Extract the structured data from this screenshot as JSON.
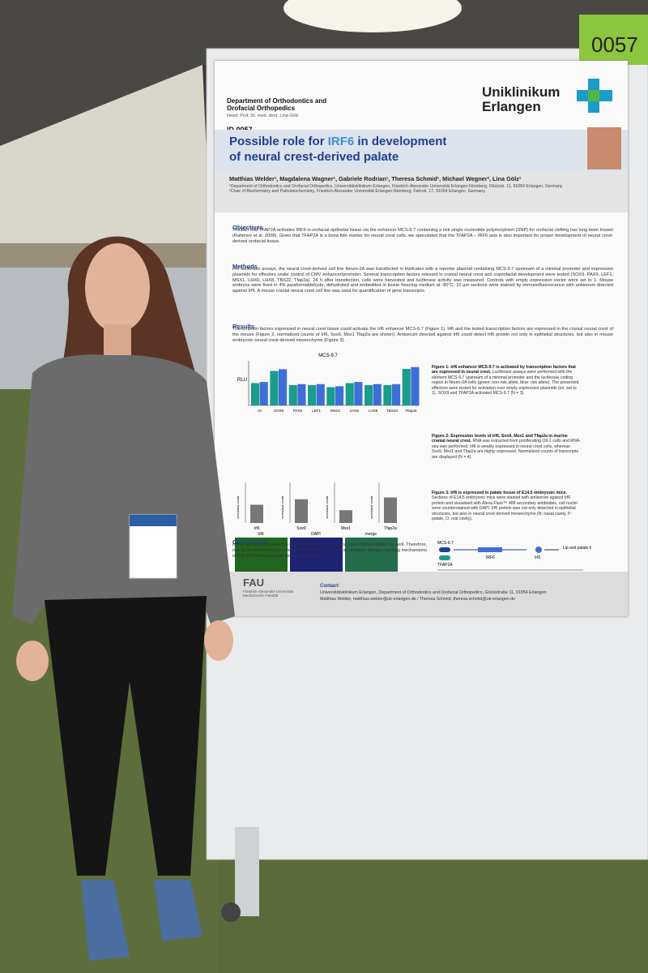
{
  "tag": "0057",
  "poster": {
    "department": "Department of Orthodontics and Orofacial Orthopedics",
    "head": "Head: Prof. Dr. med. dent. Lina Gölz",
    "logo": [
      "Uniklinikum",
      "Erlangen"
    ],
    "id": "ID 0057",
    "title": [
      "Possible role for ",
      "IRF6",
      " in development",
      "of neural crest-derived palate"
    ],
    "authors": "Matthias Welder¹, Magdalena Wagner¹, Gabriele Rodrian¹, Theresa Schmid¹, Michael Wegner², Lina Gölz¹",
    "affiliations": [
      "¹Department of Orthodontics and Orofacial Orthopedics, Universitätsklinikum Erlangen, Friedrich-Alexander Universität Erlangen-Nürnberg, Glückstr. 11, 91054 Erlangen, Germany",
      "²Chair of Biochemistry and Pathobiochemistry, Friedrich-Alexander Universität Erlangen-Nürnberg, Fahrstr. 17, 91054 Erlangen, Germany"
    ],
    "sections": [
      {
        "heading": "Objectives",
        "text": "The fact that TFAP2A activates IRF6 in orofacial epithelial tissue via the enhancer MCS-9.7 containing a risk single nucleotide polymorphism (SNP) for orofacial clefting has long been known (Rahimov et al. 2008). Given that TFAP2A is a bona fide marker for neural crest cells, we speculated that the TFAP2A – IRF6 axis is also important for proper development of neural crest-derived orofacial tissue."
      },
      {
        "heading": "Methods",
        "text": "For luciferase assays, the neural crest-derived cell line Neuro-2A was transfected in triplicates with a reporter plasmid containing MCS-9.7 upstream of a minimal promoter and expression plasmids for effectors under control of CMV enhancer/promoter. Several transcription factors relevant in cranial neural crest and craniofacial development were tested (SOX9, PAX9, LEF1, MSX1, LHX6, LHX8, TBX22, Tfap2a). 24 h after transfection, cells were harvested and luciferase activity was measured. Controls with empty expression vector were set to 1. Mouse embryos were fixed in 4% paraformaldehyde, dehydrated and embedded in tissue freezing medium at -80°C. 10 µm sections were stained by immunofluorescence with antiserum directed against Irf6. A mouse cranial neural crest cell line was used for quantification of gene transcripts."
      },
      {
        "heading": "Results",
        "text": "Transcription factors expressed in neural crest tissue could activate the Irf6 enhancer MCS-9.7 (Figure 1). Irf6 and the tested transcription factors are expressed in the cranial neural crest of the mouse (Figure 2, normalized counts of Irf6, Sox9, Msx1 Tfap2a are shown). Antiserum directed against Irf6 could detect Irf6 protein not only in epithelial structures, but also in mouse embryonic neural crest-derived mesenchyme (Figure 3)."
      }
    ],
    "figure1": {
      "title": "MCS-9.7",
      "ylabel": "RLU",
      "categories": [
        "ctr",
        "SOX9",
        "PAX9",
        "LEF1",
        "MSX1",
        "LHX6",
        "LHX8",
        "TBX22",
        "Tfap2a"
      ],
      "caption_bold": "Figure 1: Irf6 enhancer MCS-9.7 is activated by transcription factors that are expressed in neural crest.",
      "caption": "Luciferase assays were performed with the element MCS-9.7 upstream of a minimal promoter and the luciferase coding region in Neuro-2A cells (green: non-risk allele, blue: risk allele). The presented effectors were tested for activation over empty expression plasmids (ctr. set to 1). SOX9 and TFAP2A activated MCS-9.7 (N = 3)."
    },
    "figure2": {
      "ylabel": "normalized counts",
      "genes": [
        "Irf6",
        "Sox9",
        "Msx1",
        "Tfap2a"
      ],
      "caption_bold": "Figure 2: Expression levels of Irf6, Sox9, Msx1 and Tfap2a in murine cranial neural crest.",
      "caption": "RNA was extracted from proliferating O9-1 cells and RNA-seq was performed. Irf6 is weakly expressed in neural crest cells, whereas Sox9, Msx1 and Tfap2a are highly expressed. Normalized counts of transcripts are displayed (N = 4)."
    },
    "figure3": {
      "labels": [
        "Irf6",
        "DAPI",
        "merge"
      ],
      "caption_bold": "Figure 3: Irf6 is expressed in palate tissue of E14.5 embryonic mice.",
      "caption": "Sections of E14.5 embryonic mice were stained with antiserum against Irf6 protein and visualized with Alexa Fluor™ 488 secondary antibodies, cell nuclei were counterstained with DAPI. Irf6 protein was not only detected in epithelial structures, but also in neural crest derived mesenchyme (N: nasal cavity, P: palate, O: oral cavity)."
    },
    "conclusions": {
      "heading": "Conclusions",
      "text": "Irf6 is not only expressed in epithelial tissue but in neural crest-derived palate as well. Therefore, neural crest-related phenomena should be considered as possible disease-causing mechanisms of risk SNPs for orofacial clefts related to IRF6."
    },
    "scheme": {
      "labels": [
        "MCS-9.7",
        "TFAP2A",
        "IRF6",
        "Irf6",
        "Lip and palate formation"
      ],
      "footer": "in epithelial and neural crest-derived tissue"
    },
    "footer": {
      "fau": "FAU",
      "fau_sub": "Friedrich-Alexander-Universität Medizinische Fakultät",
      "contact_label": "Contact:",
      "contact": "Universitätsklinikum Erlangen, Department of Orthodontics and Orofacial Orthopedics, Glückstraße 11, 91054 Erlangen",
      "contact_names": "Matthias Welder, matthias.welder@uk-erlangen.de / Theresa Schmid, theresa.schmid@uk-erlangen.de"
    }
  }
}
